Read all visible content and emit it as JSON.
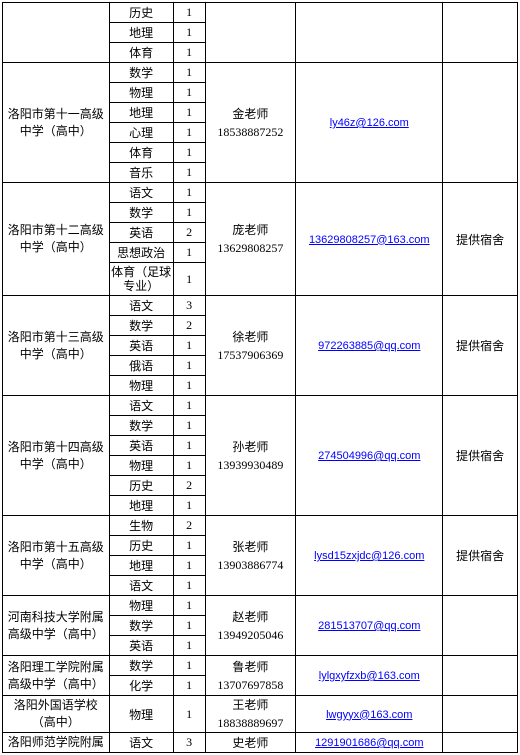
{
  "colors": {
    "border": "#000000",
    "background": "#ffffff",
    "link": "#0000ff",
    "text": "#000000"
  },
  "orphan": {
    "subjects": [
      {
        "name": "历史",
        "count": "1"
      },
      {
        "name": "地理",
        "count": "1"
      },
      {
        "name": "体育",
        "count": "1"
      }
    ]
  },
  "schools": [
    {
      "name": "洛阳市第十一高级中学（高中）",
      "subjects": [
        {
          "name": "数学",
          "count": "1"
        },
        {
          "name": "物理",
          "count": "1"
        },
        {
          "name": "地理",
          "count": "1"
        },
        {
          "name": "心理",
          "count": "1"
        },
        {
          "name": "体育",
          "count": "1"
        },
        {
          "name": "音乐",
          "count": "1"
        }
      ],
      "contact_name": "金老师",
      "contact_phone": "18538887252",
      "email": "ly46z@126.com",
      "note": ""
    },
    {
      "name": "洛阳市第十二高级中学（高中）",
      "subjects": [
        {
          "name": "语文",
          "count": "1"
        },
        {
          "name": "数学",
          "count": "1"
        },
        {
          "name": "英语",
          "count": "2"
        },
        {
          "name": "思想政治",
          "count": "1"
        },
        {
          "name": "体育（足球专业）",
          "count": "1"
        }
      ],
      "contact_name": "庞老师",
      "contact_phone": "13629808257",
      "email": "13629808257@163.com",
      "note": "提供宿舍"
    },
    {
      "name": "洛阳市第十三高级中学（高中）",
      "subjects": [
        {
          "name": "语文",
          "count": "3"
        },
        {
          "name": "数学",
          "count": "2"
        },
        {
          "name": "英语",
          "count": "1"
        },
        {
          "name": "俄语",
          "count": "1"
        },
        {
          "name": "物理",
          "count": "1"
        }
      ],
      "contact_name": "徐老师",
      "contact_phone": "17537906369",
      "email": "972263885@qq.com",
      "note": "提供宿舍"
    },
    {
      "name": "洛阳市第十四高级中学（高中）",
      "subjects": [
        {
          "name": "语文",
          "count": "1"
        },
        {
          "name": "数学",
          "count": "1"
        },
        {
          "name": "英语",
          "count": "1"
        },
        {
          "name": "物理",
          "count": "1"
        },
        {
          "name": "历史",
          "count": "2"
        },
        {
          "name": "地理",
          "count": "1"
        }
      ],
      "contact_name": "孙老师",
      "contact_phone": "13939930489",
      "email": "274504996@qq.com",
      "note": "提供宿舍"
    },
    {
      "name": "洛阳市第十五高级中学（高中）",
      "subjects": [
        {
          "name": "生物",
          "count": "2"
        },
        {
          "name": "历史",
          "count": "1"
        },
        {
          "name": "地理",
          "count": "1"
        },
        {
          "name": "语文",
          "count": "1"
        }
      ],
      "contact_name": "张老师",
      "contact_phone": "13903886774",
      "email": "lysd15zxjdc@126.com",
      "note": "提供宿舍"
    },
    {
      "name": "河南科技大学附属高级中学（高中）",
      "subjects": [
        {
          "name": "物理",
          "count": "1"
        },
        {
          "name": "数学",
          "count": "1"
        },
        {
          "name": "英语",
          "count": "1"
        }
      ],
      "contact_name": "赵老师",
      "contact_phone": "13949205046",
      "email": "281513707@qq.com",
      "note": ""
    },
    {
      "name": "洛阳理工学院附属高级中学（高中）",
      "subjects": [
        {
          "name": "数学",
          "count": "1"
        },
        {
          "name": "化学",
          "count": "1"
        }
      ],
      "contact_name": "鲁老师",
      "contact_phone": "13707697858",
      "email": "lylgxyfzxb@163.com",
      "note": ""
    },
    {
      "name": "洛阳外国语学校（高中）",
      "subjects": [
        {
          "name": "物理",
          "count": "1"
        }
      ],
      "contact_name": "王老师",
      "contact_phone": "18838889697",
      "email": "lwgyyx@163.com",
      "note": ""
    },
    {
      "name": "洛阳师范学院附属",
      "subjects": [
        {
          "name": "语文",
          "count": "3"
        }
      ],
      "contact_name": "史老师",
      "contact_phone": "",
      "email": "1291901686@qq.com",
      "note": ""
    }
  ]
}
